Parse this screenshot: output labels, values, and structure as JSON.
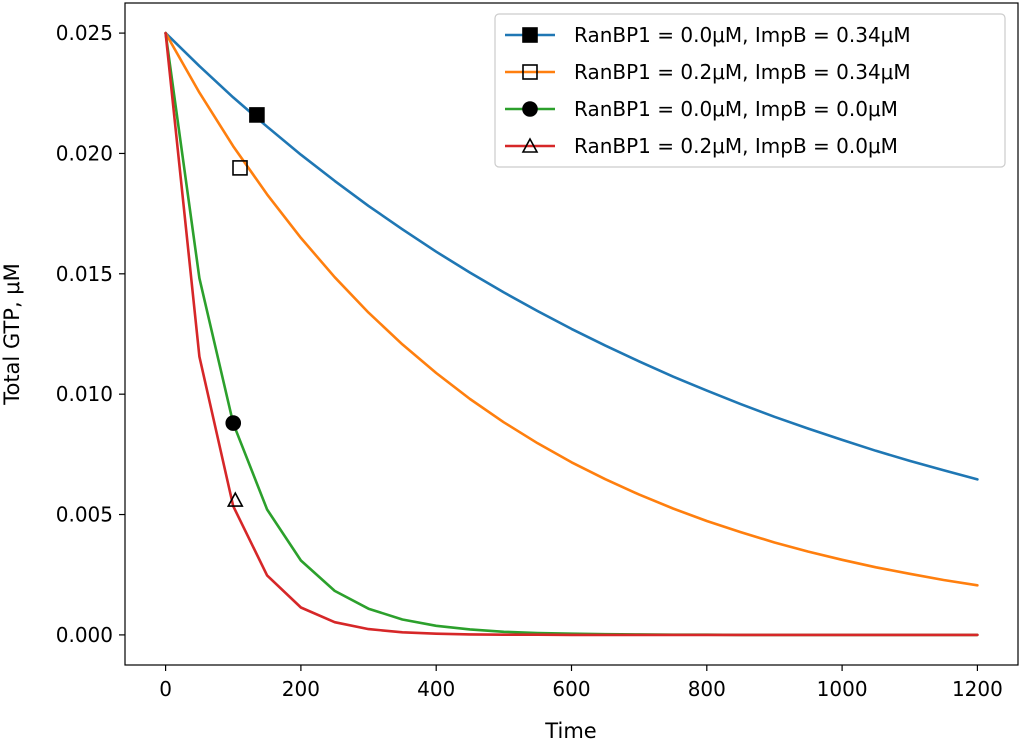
{
  "chart_data": {
    "type": "line",
    "xlabel": "Time",
    "ylabel": "Total GTP, μM",
    "xlim": [
      -60,
      1260
    ],
    "ylim": [
      -0.00125,
      0.02625
    ],
    "xticks": [
      0,
      200,
      400,
      600,
      800,
      1000,
      1200
    ],
    "xtick_labels": [
      "0",
      "200",
      "400",
      "600",
      "800",
      "1000",
      "1200"
    ],
    "yticks": [
      0.0,
      0.005,
      0.01,
      0.015,
      0.02,
      0.025
    ],
    "ytick_labels": [
      "0.000",
      "0.005",
      "0.010",
      "0.015",
      "0.020",
      "0.025"
    ],
    "grid": false,
    "legend_position": "top-right",
    "x": [
      0,
      50,
      100,
      150,
      200,
      250,
      300,
      350,
      400,
      450,
      500,
      550,
      600,
      650,
      700,
      750,
      800,
      850,
      900,
      950,
      1000,
      1050,
      1100,
      1150,
      1200
    ],
    "series": [
      {
        "name": "RanBP1 = 0.0μM, ImpB = 0.34μM",
        "color": "#1f77b4",
        "marker": "filled-square",
        "marker_point": [
          135,
          0.0216
        ],
        "values": [
          0.025,
          0.02363,
          0.02233,
          0.02111,
          0.01995,
          0.01886,
          0.01782,
          0.01685,
          0.01592,
          0.01505,
          0.01423,
          0.01345,
          0.01271,
          0.01202,
          0.01136,
          0.01073,
          0.01015,
          0.00959,
          0.00906,
          0.00857,
          0.0081,
          0.00765,
          0.00723,
          0.00684,
          0.00646
        ]
      },
      {
        "name": "RanBP1 = 0.2μM, ImpB = 0.34μM",
        "color": "#ff7f0e",
        "marker": "open-square",
        "marker_point": [
          110,
          0.0194
        ],
        "values": [
          0.025,
          0.02253,
          0.0203,
          0.0183,
          0.01649,
          0.01486,
          0.01339,
          0.01207,
          0.01088,
          0.0098,
          0.00883,
          0.00796,
          0.00717,
          0.00647,
          0.00583,
          0.00525,
          0.00473,
          0.00427,
          0.00384,
          0.00346,
          0.00312,
          0.00281,
          0.00254,
          0.00228,
          0.00206
        ]
      },
      {
        "name": "RanBP1 = 0.0μM, ImpB = 0.0μM",
        "color": "#2ca02c",
        "marker": "filled-circle",
        "marker_point": [
          100,
          0.0088
        ],
        "values": [
          0.025,
          0.01482,
          0.00879,
          0.00521,
          0.00309,
          0.00183,
          0.00109,
          0.00064,
          0.00038,
          0.00023,
          0.00013,
          8e-05,
          5e-05,
          3e-05,
          2e-05,
          1e-05,
          1e-05,
          0.0,
          0.0,
          0.0,
          0.0,
          0.0,
          0.0,
          0.0,
          0.0
        ]
      },
      {
        "name": "RanBP1 = 0.2μM, ImpB = 0.0μM",
        "color": "#d62728",
        "marker": "open-triangle",
        "marker_point": [
          103,
          0.0056
        ],
        "values": [
          0.025,
          0.01156,
          0.00535,
          0.00247,
          0.00114,
          0.00053,
          0.00024,
          0.00011,
          5e-05,
          2e-05,
          1e-05,
          1e-05,
          0.0,
          0.0,
          0.0,
          0.0,
          0.0,
          0.0,
          0.0,
          0.0,
          0.0,
          0.0,
          0.0,
          0.0,
          0.0
        ]
      }
    ]
  }
}
